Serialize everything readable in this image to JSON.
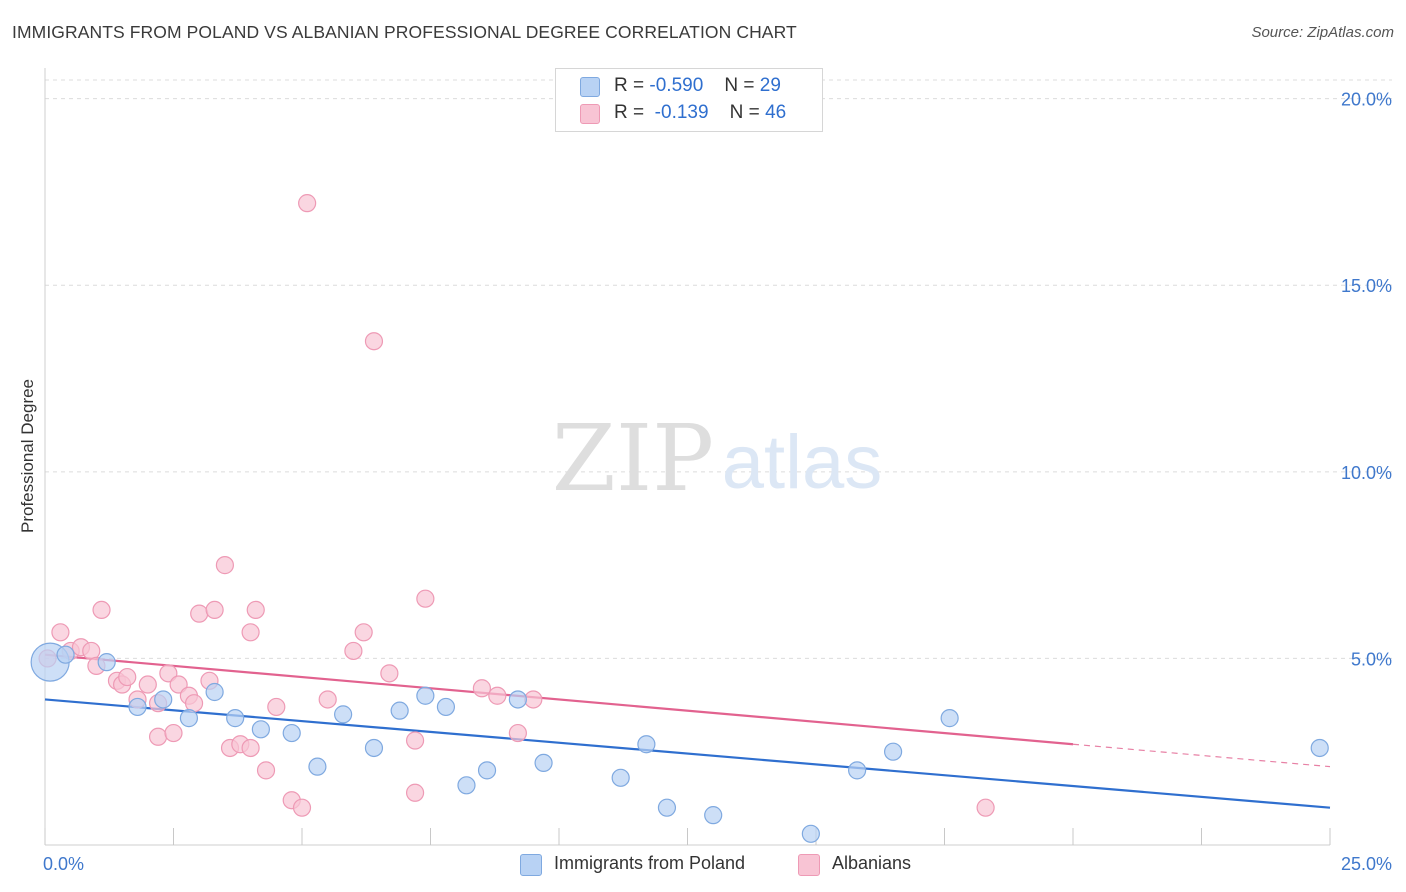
{
  "header": {
    "title": "IMMIGRANTS FROM POLAND VS ALBANIAN PROFESSIONAL DEGREE CORRELATION CHART",
    "source": "Source: ZipAtlas.com"
  },
  "watermark": {
    "zip": "ZIP",
    "atlas": "atlas"
  },
  "legend_top": {
    "poland": {
      "r_label": "R =",
      "r_value": "-0.590",
      "n_label": "N =",
      "n_value": "29"
    },
    "albanians": {
      "r_label": "R =",
      "r_value": "-0.139",
      "n_label": "N =",
      "n_value": "46"
    }
  },
  "legend_bottom": {
    "poland": "Immigrants from Poland",
    "albanians": "Albanians"
  },
  "colors": {
    "poland_fill": "#b8d2f4",
    "poland_stroke": "#7fa9e0",
    "poland_line": "#2f6fcf",
    "albanians_fill": "#f8c4d4",
    "albanians_stroke": "#ee9ab5",
    "albanians_line": "#e2628f",
    "tick_label": "#3f78cc",
    "grid": "#dcdcdc"
  },
  "chart_data": {
    "type": "scatter",
    "title": "IMMIGRANTS FROM POLAND VS ALBANIAN PROFESSIONAL DEGREE CORRELATION CHART",
    "xlabel": "",
    "ylabel": "Professional Degree",
    "xlim": [
      0,
      25
    ],
    "ylim": [
      0,
      20.5
    ],
    "x_tick_labels": [
      "0.0%",
      "25.0%"
    ],
    "y_ticks": [
      5,
      10,
      15,
      20
    ],
    "y_tick_labels": [
      "5.0%",
      "10.0%",
      "15.0%",
      "20.0%"
    ],
    "grid": true,
    "series": [
      {
        "name": "Immigrants from Poland",
        "r": -0.59,
        "n": 29,
        "trend": {
          "x0": 0,
          "y0": 3.9,
          "x1": 25,
          "y1": 1.0
        },
        "points": [
          {
            "x": 0.1,
            "y": 4.9,
            "big": true
          },
          {
            "x": 0.4,
            "y": 5.1
          },
          {
            "x": 1.2,
            "y": 4.9
          },
          {
            "x": 1.8,
            "y": 3.7
          },
          {
            "x": 2.3,
            "y": 3.9
          },
          {
            "x": 2.8,
            "y": 3.4
          },
          {
            "x": 3.3,
            "y": 4.1
          },
          {
            "x": 3.7,
            "y": 3.4
          },
          {
            "x": 4.2,
            "y": 3.1
          },
          {
            "x": 4.8,
            "y": 3.0
          },
          {
            "x": 5.3,
            "y": 2.1
          },
          {
            "x": 5.8,
            "y": 3.5
          },
          {
            "x": 6.4,
            "y": 2.6
          },
          {
            "x": 6.9,
            "y": 3.6
          },
          {
            "x": 7.4,
            "y": 4.0
          },
          {
            "x": 7.8,
            "y": 3.7
          },
          {
            "x": 8.2,
            "y": 1.6
          },
          {
            "x": 8.6,
            "y": 2.0
          },
          {
            "x": 9.2,
            "y": 3.9
          },
          {
            "x": 9.7,
            "y": 2.2
          },
          {
            "x": 11.2,
            "y": 1.8
          },
          {
            "x": 11.7,
            "y": 2.7
          },
          {
            "x": 12.1,
            "y": 1.0
          },
          {
            "x": 13.0,
            "y": 0.8
          },
          {
            "x": 14.9,
            "y": 0.3
          },
          {
            "x": 15.8,
            "y": 2.0
          },
          {
            "x": 16.5,
            "y": 2.5
          },
          {
            "x": 17.6,
            "y": 3.4
          },
          {
            "x": 24.8,
            "y": 2.6
          }
        ]
      },
      {
        "name": "Albanians",
        "r": -0.139,
        "n": 46,
        "trend": {
          "x0": 0,
          "y0": 5.1,
          "x1": 20,
          "y1": 2.7,
          "dash_to_x": 25,
          "dash_to_y": 2.1
        },
        "points": [
          {
            "x": 0.05,
            "y": 5.0
          },
          {
            "x": 0.3,
            "y": 5.7
          },
          {
            "x": 0.5,
            "y": 5.2
          },
          {
            "x": 0.7,
            "y": 5.3
          },
          {
            "x": 0.9,
            "y": 5.2
          },
          {
            "x": 1.1,
            "y": 6.3
          },
          {
            "x": 1.0,
            "y": 4.8
          },
          {
            "x": 1.4,
            "y": 4.4
          },
          {
            "x": 1.5,
            "y": 4.3
          },
          {
            "x": 1.6,
            "y": 4.5
          },
          {
            "x": 1.8,
            "y": 3.9
          },
          {
            "x": 2.0,
            "y": 4.3
          },
          {
            "x": 2.2,
            "y": 3.8
          },
          {
            "x": 2.4,
            "y": 4.6
          },
          {
            "x": 2.6,
            "y": 4.3
          },
          {
            "x": 2.2,
            "y": 2.9
          },
          {
            "x": 2.5,
            "y": 3.0
          },
          {
            "x": 2.8,
            "y": 4.0
          },
          {
            "x": 2.9,
            "y": 3.8
          },
          {
            "x": 3.0,
            "y": 6.2
          },
          {
            "x": 3.2,
            "y": 4.4
          },
          {
            "x": 3.3,
            "y": 6.3
          },
          {
            "x": 3.5,
            "y": 7.5
          },
          {
            "x": 3.6,
            "y": 2.6
          },
          {
            "x": 3.8,
            "y": 2.7
          },
          {
            "x": 4.0,
            "y": 2.6
          },
          {
            "x": 4.0,
            "y": 5.7
          },
          {
            "x": 4.1,
            "y": 6.3
          },
          {
            "x": 4.3,
            "y": 2.0
          },
          {
            "x": 4.5,
            "y": 3.7
          },
          {
            "x": 4.8,
            "y": 1.2
          },
          {
            "x": 5.0,
            "y": 1.0
          },
          {
            "x": 5.1,
            "y": 17.2
          },
          {
            "x": 5.5,
            "y": 3.9
          },
          {
            "x": 6.0,
            "y": 5.2
          },
          {
            "x": 6.2,
            "y": 5.7
          },
          {
            "x": 6.4,
            "y": 13.5
          },
          {
            "x": 6.7,
            "y": 4.6
          },
          {
            "x": 7.2,
            "y": 2.8
          },
          {
            "x": 7.4,
            "y": 6.6
          },
          {
            "x": 7.2,
            "y": 1.4
          },
          {
            "x": 8.5,
            "y": 4.2
          },
          {
            "x": 8.8,
            "y": 4.0
          },
          {
            "x": 9.2,
            "y": 3.0
          },
          {
            "x": 9.5,
            "y": 3.9
          },
          {
            "x": 18.3,
            "y": 1.0
          }
        ]
      }
    ]
  }
}
